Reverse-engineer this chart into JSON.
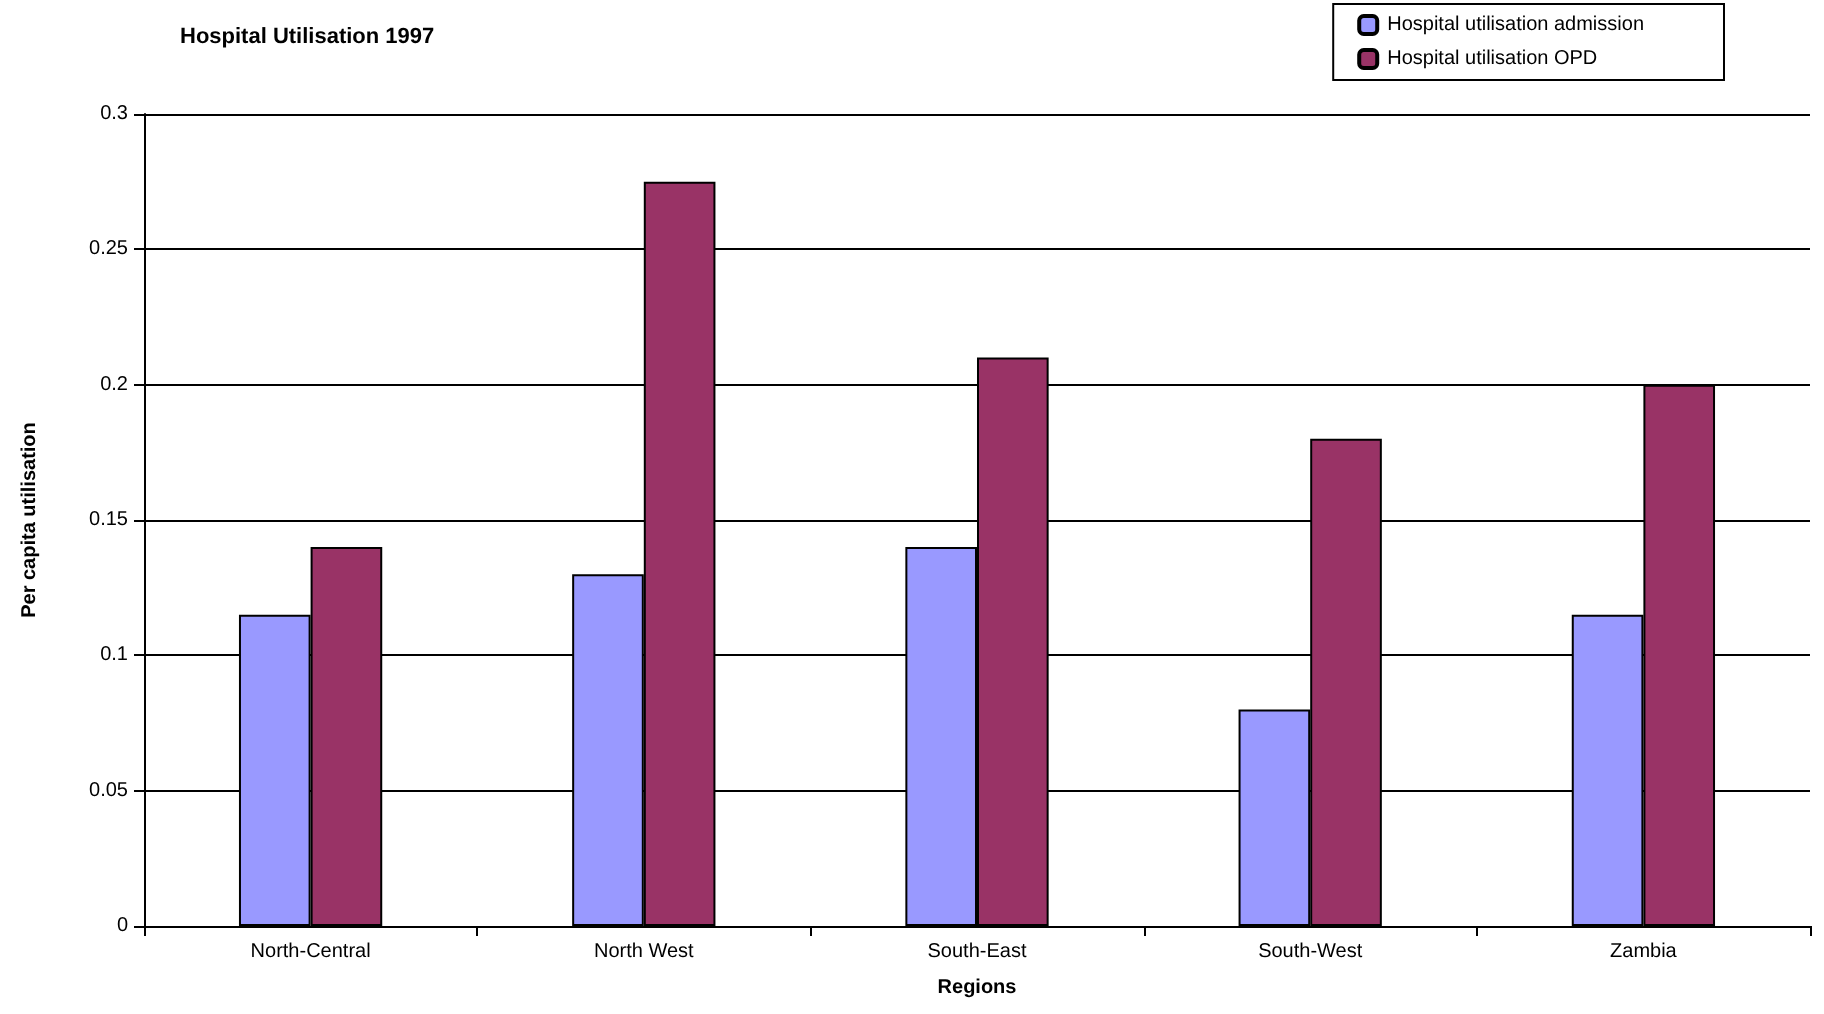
{
  "chart_data": {
    "type": "bar",
    "title": "Hospital Utilisation 1997",
    "xlabel": "Regions",
    "ylabel": "Per capita utilisation",
    "categories": [
      "North-Central",
      "North West",
      "South-East",
      "South-West",
      "Zambia"
    ],
    "series": [
      {
        "name": "Hospital utilisation admission",
        "color": "#9999ff",
        "values": [
          0.115,
          0.13,
          0.14,
          0.08,
          0.115
        ]
      },
      {
        "name": "Hospital utilisation OPD",
        "color": "#993366",
        "values": [
          0.14,
          0.275,
          0.21,
          0.18,
          0.2
        ]
      }
    ],
    "ylim": [
      0,
      0.3
    ],
    "yticks": [
      0,
      0.05,
      0.1,
      0.15,
      0.2,
      0.25,
      0.3
    ],
    "grid": "y",
    "legend": "top right"
  }
}
